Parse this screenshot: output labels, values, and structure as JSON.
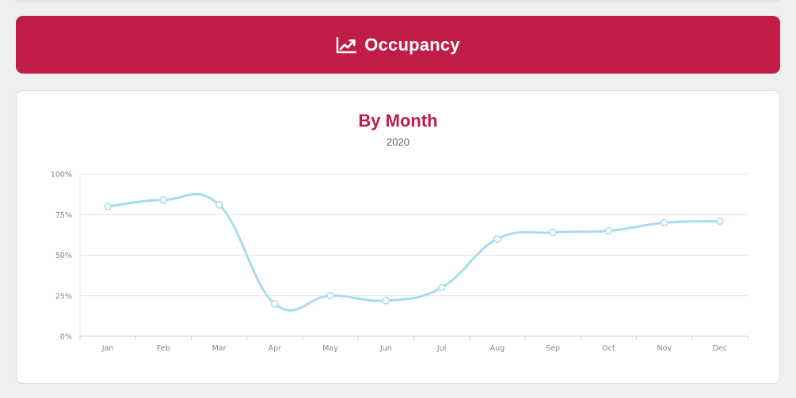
{
  "header": {
    "title": "Occupancy",
    "icon": "trending-up-icon",
    "background": "#c01c48",
    "text_color": "#ffffff"
  },
  "colors": {
    "title": "#c01c48",
    "line": "#a8dcea",
    "grid": "#e6e6e6",
    "axis": "#cfcfcf",
    "marker_fill": "#ffffff"
  },
  "chart_data": {
    "type": "line",
    "title": "By Month",
    "subtitle": "2020",
    "xlabel": "",
    "ylabel": "",
    "categories": [
      "Jan",
      "Feb",
      "Mar",
      "Apr",
      "May",
      "Jun",
      "Jul",
      "Aug",
      "Sep",
      "Oct",
      "Nov",
      "Dec"
    ],
    "series": [
      {
        "values": [
          80,
          84,
          81,
          20,
          25,
          22,
          30,
          60,
          64,
          65,
          70,
          71
        ]
      }
    ],
    "ylim": [
      0,
      100
    ],
    "yticks": [
      0,
      25,
      50,
      75,
      100
    ],
    "ytick_labels": [
      "0%",
      "25%",
      "50%",
      "75%",
      "100%"
    ],
    "grid": true,
    "smooth": true,
    "markers": true,
    "legend": "none"
  }
}
